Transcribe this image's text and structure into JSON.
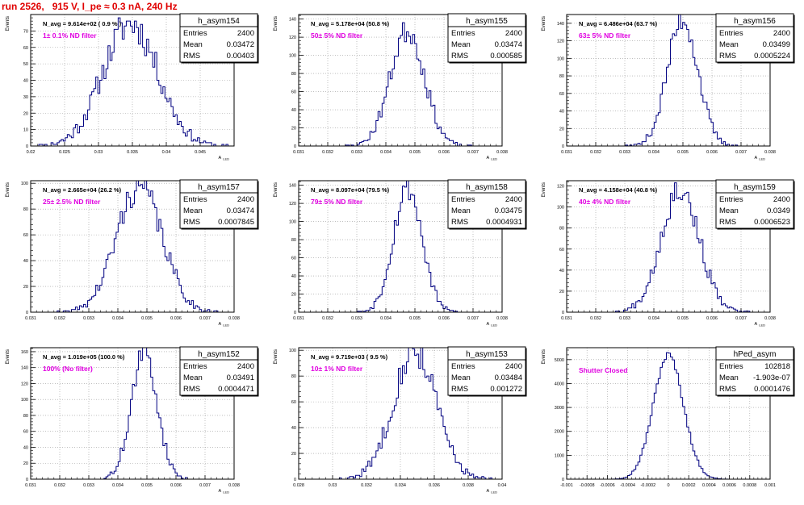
{
  "header": {
    "title": "run 2526,   915 V, I_pe ≈ 0.3 nA, 240 Hz"
  },
  "colors": {
    "title": "#e00000",
    "annotation": "#e000e0",
    "histogram": "#000080",
    "frame": "#000000"
  },
  "chart_data": [
    {
      "type": "histogram",
      "name": "h_asym154",
      "navg": "N_avg = 9.614e+02 ( 0.9 % )",
      "label": "1± 0.1% ND filter",
      "stats": {
        "Entries": "2400",
        "Mean": "0.03472",
        "RMS": "0.00403"
      },
      "mean": 0.03472,
      "rms": 0.00403,
      "peak": 75,
      "xlim": [
        0.02,
        0.05
      ],
      "ylim": [
        0,
        80
      ],
      "xticks": [
        0.02,
        0.025,
        0.03,
        0.035,
        0.04,
        0.045
      ],
      "yticks": [
        0,
        10,
        20,
        30,
        40,
        50,
        60,
        70
      ],
      "ylabel": "Events",
      "xlabel": "A_LED",
      "nbins": 100,
      "seed": 11
    },
    {
      "type": "histogram",
      "name": "h_asym155",
      "navg": "N_avg = 5.178e+04 (50.8 %)",
      "label": "50± 5% ND filter",
      "stats": {
        "Entries": "2400",
        "Mean": "0.03474",
        "RMS": "0.000585"
      },
      "mean": 0.03474,
      "rms": 0.000585,
      "peak": 128,
      "xlim": [
        0.031,
        0.038
      ],
      "ylim": [
        0,
        145
      ],
      "xticks": [
        0.031,
        0.032,
        0.033,
        0.034,
        0.035,
        0.036,
        0.037,
        0.038
      ],
      "yticks": [
        0,
        20,
        40,
        60,
        80,
        100,
        120,
        140
      ],
      "ylabel": "Events",
      "xlabel": "A_LED",
      "nbins": 100,
      "seed": 23
    },
    {
      "type": "histogram",
      "name": "h_asym156",
      "navg": "N_avg = 6.486e+04 (63.7 %)",
      "label": "63± 5% ND filter",
      "stats": {
        "Entries": "2400",
        "Mean": "0.03499",
        "RMS": "0.0005224"
      },
      "mean": 0.03499,
      "rms": 0.0005224,
      "peak": 145,
      "xlim": [
        0.031,
        0.038
      ],
      "ylim": [
        0,
        150
      ],
      "xticks": [
        0.031,
        0.032,
        0.033,
        0.034,
        0.035,
        0.036,
        0.037,
        0.038
      ],
      "yticks": [
        0,
        20,
        40,
        60,
        80,
        100,
        120,
        140
      ],
      "ylabel": "Events",
      "xlabel": "A_LED",
      "nbins": 100,
      "seed": 37
    },
    {
      "type": "histogram",
      "name": "h_asym157",
      "navg": "N_avg = 2.665e+04 (26.2 %)",
      "label": "25± 2.5% ND filter",
      "stats": {
        "Entries": "2400",
        "Mean": "0.03474",
        "RMS": "0.0007845"
      },
      "mean": 0.03474,
      "rms": 0.0007845,
      "peak": 98,
      "xlim": [
        0.031,
        0.038
      ],
      "ylim": [
        0,
        102
      ],
      "xticks": [
        0.031,
        0.032,
        0.033,
        0.034,
        0.035,
        0.036,
        0.037,
        0.038
      ],
      "yticks": [
        0,
        20,
        40,
        60,
        80,
        100
      ],
      "ylabel": "Events",
      "xlabel": "A_LED",
      "nbins": 100,
      "seed": 41
    },
    {
      "type": "histogram",
      "name": "h_asym158",
      "navg": "N_avg = 8.097e+04 (79.5 %)",
      "label": "79± 5% ND filter",
      "stats": {
        "Entries": "2400",
        "Mean": "0.03475",
        "RMS": "0.0004931"
      },
      "mean": 0.03475,
      "rms": 0.0004931,
      "peak": 138,
      "xlim": [
        0.031,
        0.038
      ],
      "ylim": [
        0,
        145
      ],
      "xticks": [
        0.031,
        0.032,
        0.033,
        0.034,
        0.035,
        0.036,
        0.037,
        0.038
      ],
      "yticks": [
        0,
        20,
        40,
        60,
        80,
        100,
        120,
        140
      ],
      "ylabel": "Events",
      "xlabel": "A_LED",
      "nbins": 100,
      "seed": 53
    },
    {
      "type": "histogram",
      "name": "h_asym159",
      "navg": "N_avg = 4.158e+04 (40.8 %)",
      "label": "40± 4% ND filter",
      "stats": {
        "Entries": "2400",
        "Mean": "0.0349",
        "RMS": "0.0006523"
      },
      "mean": 0.0349,
      "rms": 0.0006523,
      "peak": 118,
      "xlim": [
        0.031,
        0.038
      ],
      "ylim": [
        0,
        125
      ],
      "xticks": [
        0.031,
        0.032,
        0.033,
        0.034,
        0.035,
        0.036,
        0.037,
        0.038
      ],
      "yticks": [
        0,
        20,
        40,
        60,
        80,
        100,
        120
      ],
      "ylabel": "Events",
      "xlabel": "A_LED",
      "nbins": 100,
      "seed": 67
    },
    {
      "type": "histogram",
      "name": "h_asym152",
      "navg": "N_avg = 1.019e+05 (100.0 %)",
      "label": "100% (No filter)",
      "stats": {
        "Entries": "2400",
        "Mean": "0.03491",
        "RMS": "0.0004471"
      },
      "mean": 0.03491,
      "rms": 0.0004471,
      "peak": 158,
      "xlim": [
        0.031,
        0.038
      ],
      "ylim": [
        0,
        165
      ],
      "xticks": [
        0.031,
        0.032,
        0.033,
        0.034,
        0.035,
        0.036,
        0.037,
        0.038
      ],
      "yticks": [
        0,
        20,
        40,
        60,
        80,
        100,
        120,
        140,
        160
      ],
      "ylabel": "Events",
      "xlabel": "A_LED",
      "nbins": 100,
      "seed": 71
    },
    {
      "type": "histogram",
      "name": "h_asym153",
      "navg": "N_avg = 9.719e+03 ( 9.5 %)",
      "label": "10± 1% ND filter",
      "stats": {
        "Entries": "2400",
        "Mean": "0.03484",
        "RMS": "0.001272"
      },
      "mean": 0.03484,
      "rms": 0.001272,
      "peak": 100,
      "xlim": [
        0.028,
        0.04
      ],
      "ylim": [
        0,
        102
      ],
      "xticks": [
        0.028,
        0.03,
        0.032,
        0.034,
        0.036,
        0.038,
        0.04
      ],
      "yticks": [
        0,
        20,
        40,
        60,
        80,
        100
      ],
      "ylabel": "Events",
      "xlabel": "A_LED",
      "nbins": 100,
      "seed": 83
    },
    {
      "type": "histogram",
      "name": "hPed_asym",
      "navg": "",
      "label": "Shutter Closed",
      "stats": {
        "Entries": "102818",
        "Mean": "-1.903e-07",
        "RMS": "0.0001476"
      },
      "mean": -1.903e-07,
      "rms": 0.0001476,
      "peak": 5200,
      "xlim": [
        -0.001,
        0.001
      ],
      "ylim": [
        0,
        5500
      ],
      "xticks": [
        -0.001,
        -0.0008,
        -0.0006,
        -0.0004,
        -0.0002,
        0,
        0.0002,
        0.0004,
        0.0006,
        0.0008,
        0.001
      ],
      "yticks": [
        0,
        1000,
        2000,
        3000,
        4000,
        5000
      ],
      "ylabel": "Events",
      "xlabel": "",
      "nbins": 100,
      "seed": 97
    }
  ]
}
